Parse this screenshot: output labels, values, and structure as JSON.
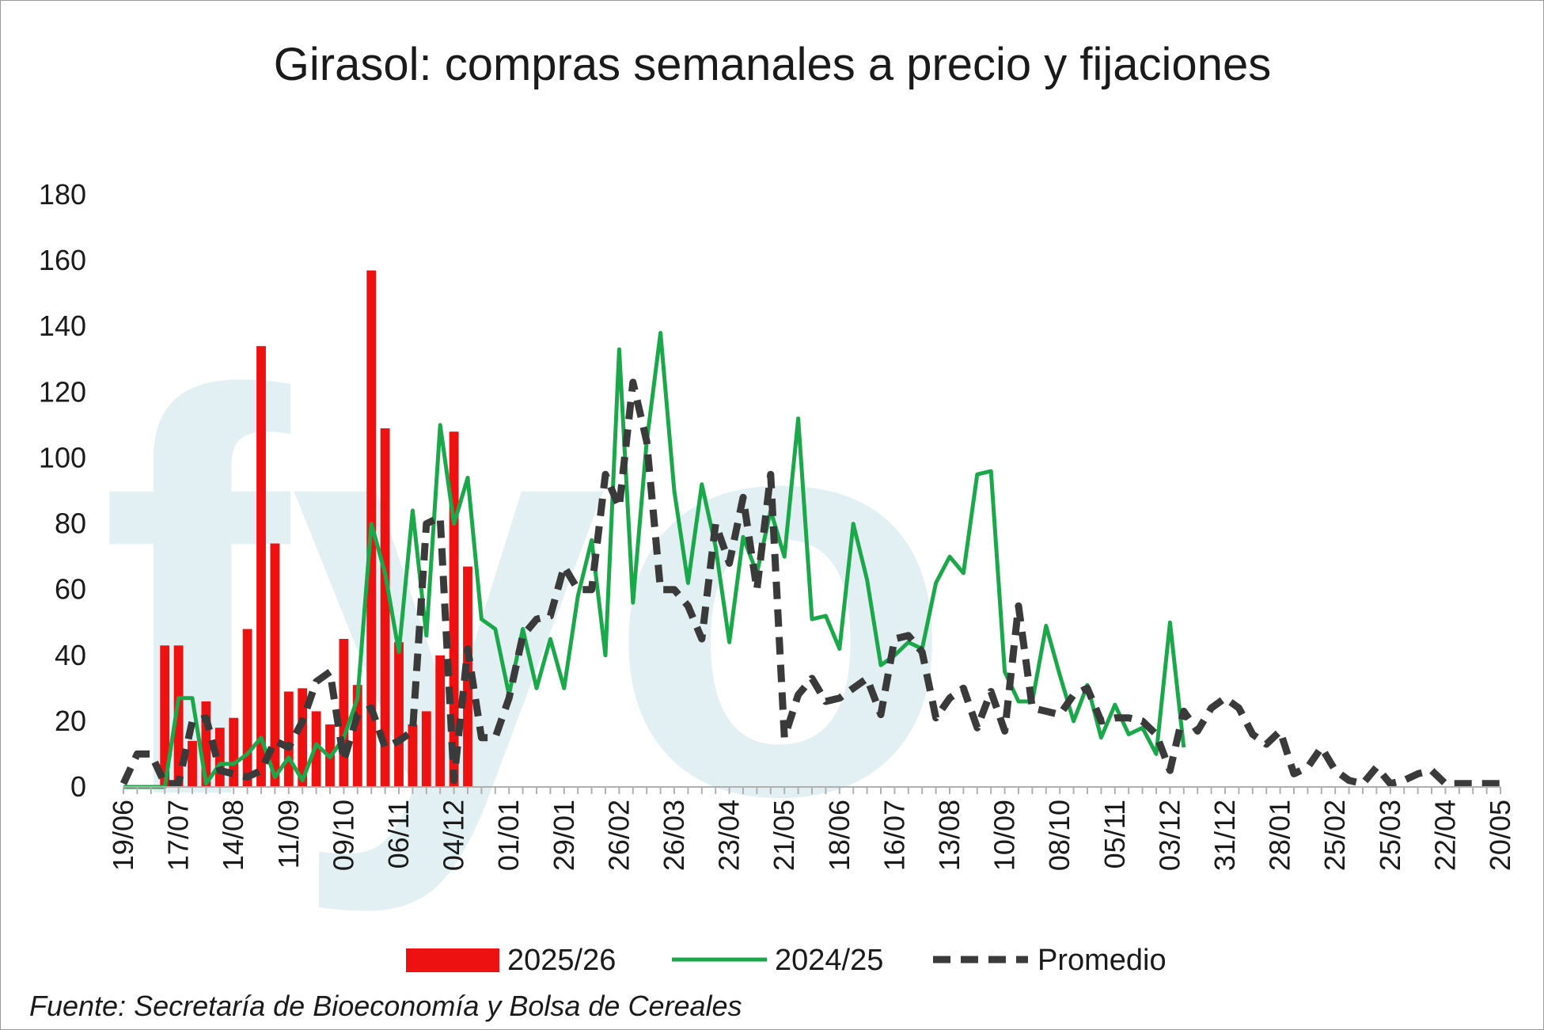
{
  "chart_data": {
    "type": "bar",
    "title": "Girasol: compras semanales a precio y fijaciones",
    "xlabel": "",
    "ylabel": "",
    "ylim": [
      0,
      180
    ],
    "yticks": [
      0,
      20,
      40,
      60,
      80,
      100,
      120,
      140,
      160,
      180
    ],
    "x_tick_labels": [
      "19/06",
      "17/07",
      "14/08",
      "11/09",
      "09/10",
      "06/11",
      "04/12",
      "01/01",
      "29/01",
      "26/02",
      "26/03",
      "23/04",
      "21/05",
      "18/06",
      "16/07",
      "13/08",
      "10/09",
      "08/10",
      "05/11",
      "03/12",
      "31/12",
      "28/01",
      "25/02",
      "25/03",
      "22/04",
      "20/05"
    ],
    "weeks_total": 101,
    "legend_position": "bottom",
    "grid": false,
    "watermark": "fyo",
    "source": "Fuente: Secretaría de Bioeconomía y Bolsa de Cereales",
    "series": [
      {
        "name": "2025/26",
        "kind": "bar",
        "color": "#ee1111",
        "values": [
          0,
          0,
          0,
          43,
          43,
          14,
          26,
          18,
          21,
          48,
          134,
          74,
          29,
          30,
          23,
          19,
          45,
          31,
          157,
          109,
          44,
          19,
          23,
          40,
          108,
          67
        ]
      },
      {
        "name": "2024/25",
        "kind": "line",
        "color": "#1aa84a",
        "values": [
          0,
          0,
          0,
          0,
          27,
          27,
          1,
          7,
          7,
          10,
          15,
          3,
          9,
          2,
          13,
          9,
          15,
          27,
          80,
          65,
          41,
          84,
          46,
          110,
          80,
          94,
          51,
          48,
          28,
          48,
          30,
          45,
          30,
          58,
          75,
          40,
          133,
          56,
          105,
          138,
          90,
          62,
          92,
          73,
          44,
          76,
          65,
          84,
          70,
          112,
          51,
          52,
          42,
          80,
          63,
          37,
          40,
          44,
          42,
          62,
          70,
          65,
          95,
          96,
          35,
          26,
          26,
          49,
          34,
          20,
          31,
          15,
          25,
          16,
          18,
          10,
          50,
          12
        ]
      },
      {
        "name": "Promedio",
        "kind": "line",
        "color": "#3a3a3a",
        "values": [
          1,
          10,
          10,
          1,
          1,
          20,
          21,
          5,
          4,
          3,
          5,
          14,
          12,
          20,
          32,
          35,
          8,
          22,
          24,
          12,
          14,
          17,
          80,
          82,
          2,
          42,
          15,
          15,
          27,
          46,
          51,
          52,
          67,
          60,
          60,
          95,
          85,
          123,
          105,
          60,
          60,
          55,
          45,
          80,
          68,
          88,
          60,
          95,
          15,
          28,
          33,
          26,
          27,
          30,
          33,
          22,
          45,
          46,
          41,
          21,
          27,
          30,
          18,
          29,
          17,
          55,
          24,
          23,
          22,
          28,
          30,
          20,
          21,
          21,
          20,
          16,
          5,
          23,
          17,
          24,
          27,
          24,
          16,
          13,
          17,
          4,
          6,
          12,
          5,
          2,
          1,
          6,
          1,
          2,
          4,
          5,
          1,
          1,
          1,
          1,
          1
        ]
      }
    ]
  }
}
